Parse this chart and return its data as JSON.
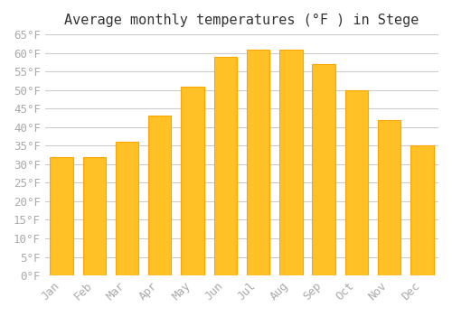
{
  "title": "Average monthly temperatures (°F ) in Stege",
  "months": [
    "Jan",
    "Feb",
    "Mar",
    "Apr",
    "May",
    "Jun",
    "Jul",
    "Aug",
    "Sep",
    "Oct",
    "Nov",
    "Dec"
  ],
  "values": [
    32,
    32,
    36,
    43,
    51,
    59,
    61,
    61,
    57,
    50,
    42,
    35
  ],
  "bar_color": "#FFC125",
  "bar_edge_color": "#FFA500",
  "background_color": "#FFFFFF",
  "grid_color": "#CCCCCC",
  "ylim": [
    0,
    65
  ],
  "yticks": [
    0,
    5,
    10,
    15,
    20,
    25,
    30,
    35,
    40,
    45,
    50,
    55,
    60,
    65
  ],
  "title_fontsize": 11,
  "tick_fontsize": 9,
  "tick_label_color": "#AAAAAA"
}
